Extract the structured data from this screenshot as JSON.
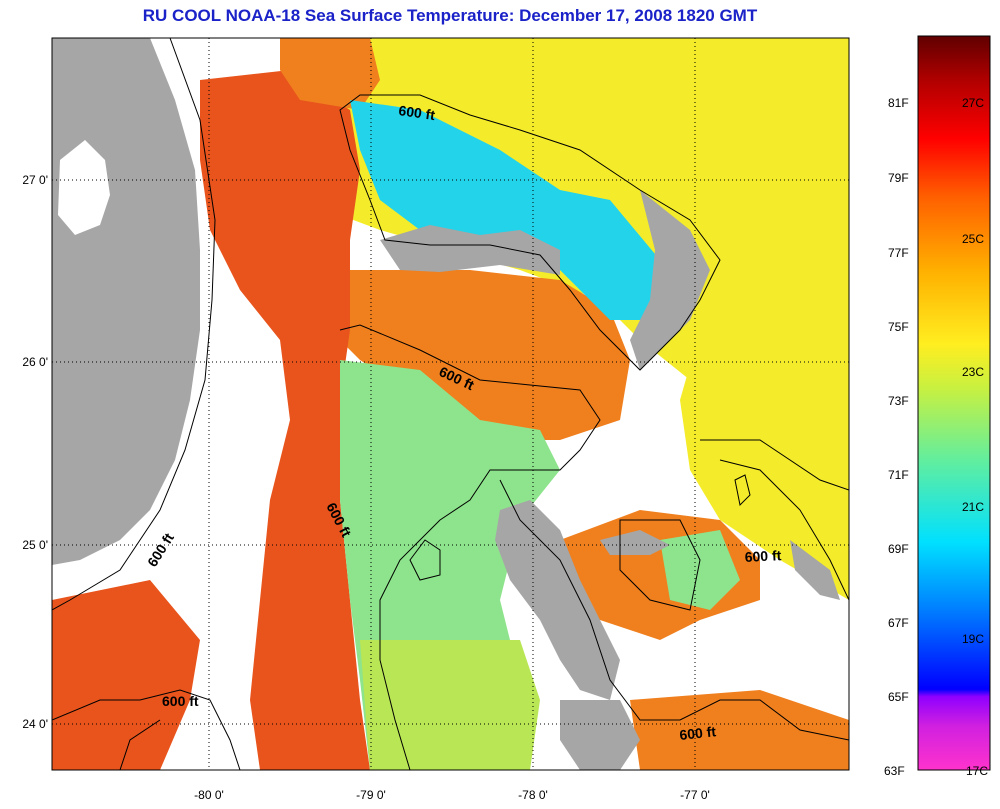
{
  "title": "RU COOL  NOAA-18  Sea Surface Temperature:  December 17, 2008 1820 GMT",
  "map": {
    "lat_ticks": [
      "27 0'",
      "26 0'",
      "25 0'",
      "24 0'"
    ],
    "lon_ticks": [
      "-80 0'",
      "-79 0'",
      "-78 0'",
      "-77 0'"
    ],
    "contour_labels": [
      "600 ft",
      "600 ft",
      "600 ft",
      "600 ft",
      "600 ft",
      "600 ft",
      "600 ft"
    ],
    "colors": {
      "land": "#a6a6a6",
      "no_data": "#ffffff",
      "warm_orange": "#f07f1e",
      "red_orange": "#e8541c",
      "yellow": "#f4ec2a",
      "green_yellow": "#b9e655",
      "green": "#8ee48c",
      "cyan": "#23d3ea",
      "contour": "#000000"
    }
  },
  "colorbar": {
    "fahrenheit": [
      "81F",
      "79F",
      "77F",
      "75F",
      "73F",
      "71F",
      "69F",
      "67F",
      "65F",
      "63F"
    ],
    "celsius": [
      "27C",
      "25C",
      "23C",
      "21C",
      "19C",
      "17C"
    ],
    "stops": [
      "#ff33cc",
      "#8f00ff",
      "#0000ff",
      "#00a0ff",
      "#00e0ff",
      "#50eeb0",
      "#c8f040",
      "#ffee20",
      "#ffb000",
      "#ff6000",
      "#ff0000",
      "#a00000",
      "#600000"
    ]
  }
}
